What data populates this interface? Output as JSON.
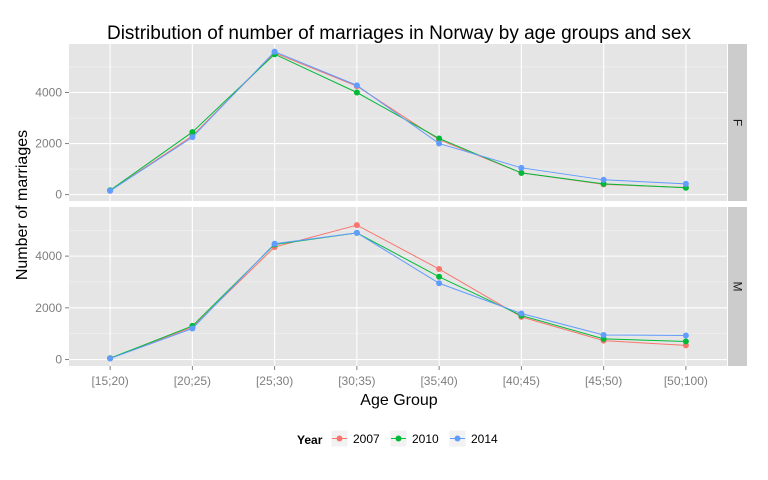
{
  "chart_data": {
    "type": "line",
    "title": "Distribution of number of marriages in Norway by age groups and sex",
    "xlabel": "Age Group",
    "ylabel": "Number of marriages",
    "categories": [
      "[15;20)",
      "[20;25)",
      "[25;30)",
      "[30;35)",
      "[35;40)",
      "[40;45)",
      "[45;50)",
      "[50;100)"
    ],
    "ylim": [
      -250,
      5900
    ],
    "yticks": [
      0,
      2000,
      4000
    ],
    "grid": true,
    "legend": {
      "title": "Year",
      "position": "bottom"
    },
    "facets": [
      {
        "label": "F",
        "series": [
          {
            "name": "2007",
            "color": "#F8766D",
            "values": [
              150,
              2300,
              5550,
              4250,
              2150,
              850,
              400,
              280
            ]
          },
          {
            "name": "2010",
            "color": "#00BA38",
            "values": [
              170,
              2450,
              5500,
              4000,
              2200,
              850,
              420,
              270
            ]
          },
          {
            "name": "2014",
            "color": "#619CFF",
            "values": [
              150,
              2250,
              5600,
              4280,
              2000,
              1050,
              580,
              420
            ]
          }
        ]
      },
      {
        "label": "M",
        "series": [
          {
            "name": "2007",
            "color": "#F8766D",
            "values": [
              50,
              1250,
              4350,
              5200,
              3500,
              1650,
              730,
              550
            ]
          },
          {
            "name": "2010",
            "color": "#00BA38",
            "values": [
              50,
              1300,
              4450,
              4900,
              3200,
              1700,
              800,
              700
            ]
          },
          {
            "name": "2014",
            "color": "#619CFF",
            "values": [
              40,
              1200,
              4480,
              4900,
              2950,
              1780,
              950,
              930
            ]
          }
        ]
      }
    ]
  }
}
